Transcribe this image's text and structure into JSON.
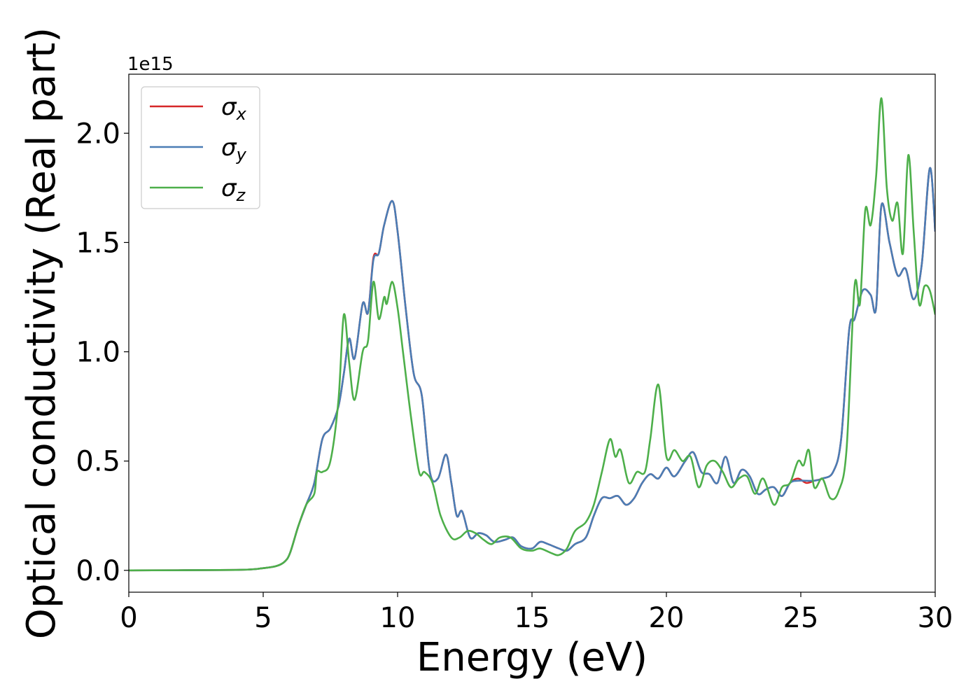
{
  "chart_data": {
    "type": "line",
    "xlabel": "Energy (eV)",
    "ylabel": "Optical conductivity (Real part)",
    "offset_text": "1e15",
    "xlim": [
      0,
      30
    ],
    "ylim": [
      -0.1,
      2.27
    ],
    "x_ticks": [
      0,
      5,
      10,
      15,
      20,
      25,
      30
    ],
    "x_tick_labels": [
      "0",
      "5",
      "10",
      "15",
      "20",
      "25",
      "30"
    ],
    "y_ticks": [
      0.0,
      0.5,
      1.0,
      1.5,
      2.0
    ],
    "y_tick_labels": [
      "0.0",
      "0.5",
      "1.0",
      "1.5",
      "2.0"
    ],
    "grid": false,
    "legend_position": "top-left",
    "series": [
      {
        "name": "σx",
        "symbol": "σ",
        "subscript": "x",
        "color": "#d62728",
        "x": [
          0,
          4,
          5,
          5.5,
          5.8,
          6.0,
          6.3,
          6.6,
          6.9,
          7.2,
          7.5,
          7.8,
          8.0,
          8.2,
          8.4,
          8.7,
          8.9,
          9.1,
          9.3,
          9.5,
          9.8,
          10.0,
          10.3,
          10.6,
          10.9,
          11.2,
          11.5,
          11.8,
          12.0,
          12.2,
          12.4,
          12.7,
          13.0,
          13.3,
          13.6,
          14.0,
          14.3,
          14.6,
          15.0,
          15.3,
          15.6,
          16.0,
          16.3,
          16.6,
          17.0,
          17.3,
          17.6,
          17.9,
          18.2,
          18.5,
          18.8,
          19.1,
          19.4,
          19.7,
          20.0,
          20.3,
          20.7,
          21.0,
          21.3,
          21.6,
          21.9,
          22.2,
          22.5,
          22.8,
          23.1,
          23.4,
          23.7,
          24.0,
          24.3,
          24.6,
          24.9,
          25.2,
          25.5,
          25.8,
          26.2,
          26.5,
          26.8,
          27.0,
          27.3,
          27.6,
          27.8,
          28.0,
          28.3,
          28.6,
          28.9,
          29.2,
          29.5,
          29.8,
          30.0
        ],
        "y": [
          0,
          0.002,
          0.01,
          0.02,
          0.04,
          0.08,
          0.2,
          0.3,
          0.4,
          0.6,
          0.65,
          0.75,
          0.9,
          1.06,
          0.97,
          1.22,
          1.18,
          1.43,
          1.45,
          1.58,
          1.69,
          1.55,
          1.2,
          0.9,
          0.8,
          0.45,
          0.42,
          0.53,
          0.4,
          0.25,
          0.27,
          0.15,
          0.17,
          0.16,
          0.13,
          0.14,
          0.15,
          0.11,
          0.1,
          0.13,
          0.12,
          0.1,
          0.09,
          0.12,
          0.15,
          0.25,
          0.33,
          0.33,
          0.34,
          0.3,
          0.33,
          0.4,
          0.44,
          0.42,
          0.47,
          0.43,
          0.5,
          0.54,
          0.45,
          0.44,
          0.4,
          0.52,
          0.4,
          0.46,
          0.43,
          0.35,
          0.37,
          0.38,
          0.34,
          0.4,
          0.42,
          0.4,
          0.41,
          0.42,
          0.45,
          0.6,
          1.1,
          1.15,
          1.28,
          1.26,
          1.2,
          1.67,
          1.5,
          1.35,
          1.38,
          1.24,
          1.4,
          1.84,
          1.55
        ]
      },
      {
        "name": "σy",
        "symbol": "σ",
        "subscript": "y",
        "color": "#4a7db5",
        "x": [
          0,
          4,
          5,
          5.5,
          5.8,
          6.0,
          6.3,
          6.6,
          6.9,
          7.2,
          7.5,
          7.8,
          8.0,
          8.2,
          8.4,
          8.7,
          8.9,
          9.1,
          9.3,
          9.5,
          9.8,
          10.0,
          10.3,
          10.6,
          10.9,
          11.2,
          11.5,
          11.8,
          12.0,
          12.2,
          12.4,
          12.7,
          13.0,
          13.3,
          13.6,
          14.0,
          14.3,
          14.6,
          15.0,
          15.3,
          15.6,
          16.0,
          16.3,
          16.6,
          17.0,
          17.3,
          17.6,
          17.9,
          18.2,
          18.5,
          18.8,
          19.1,
          19.4,
          19.7,
          20.0,
          20.3,
          20.7,
          21.0,
          21.3,
          21.6,
          21.9,
          22.2,
          22.5,
          22.8,
          23.1,
          23.4,
          23.7,
          24.0,
          24.3,
          24.6,
          24.9,
          25.2,
          25.5,
          25.8,
          26.2,
          26.5,
          26.8,
          27.0,
          27.3,
          27.6,
          27.8,
          28.0,
          28.3,
          28.6,
          28.9,
          29.2,
          29.5,
          29.8,
          30.0
        ],
        "y": [
          0,
          0.002,
          0.01,
          0.02,
          0.04,
          0.08,
          0.2,
          0.3,
          0.4,
          0.6,
          0.65,
          0.75,
          0.9,
          1.06,
          0.97,
          1.22,
          1.18,
          1.42,
          1.45,
          1.58,
          1.69,
          1.55,
          1.2,
          0.9,
          0.8,
          0.45,
          0.42,
          0.53,
          0.4,
          0.25,
          0.27,
          0.15,
          0.17,
          0.16,
          0.13,
          0.14,
          0.15,
          0.11,
          0.1,
          0.13,
          0.12,
          0.1,
          0.09,
          0.12,
          0.15,
          0.25,
          0.33,
          0.33,
          0.34,
          0.3,
          0.33,
          0.4,
          0.44,
          0.42,
          0.47,
          0.43,
          0.5,
          0.54,
          0.45,
          0.44,
          0.4,
          0.52,
          0.4,
          0.46,
          0.43,
          0.35,
          0.37,
          0.38,
          0.34,
          0.4,
          0.41,
          0.41,
          0.41,
          0.42,
          0.45,
          0.6,
          1.1,
          1.15,
          1.28,
          1.26,
          1.2,
          1.67,
          1.5,
          1.35,
          1.38,
          1.24,
          1.4,
          1.84,
          1.55
        ]
      },
      {
        "name": "σz",
        "symbol": "σ",
        "subscript": "z",
        "color": "#4daf4a",
        "x": [
          0,
          4,
          5,
          5.5,
          5.8,
          6.0,
          6.3,
          6.6,
          6.9,
          7.0,
          7.2,
          7.5,
          7.8,
          8.0,
          8.2,
          8.4,
          8.7,
          8.9,
          9.1,
          9.3,
          9.5,
          9.6,
          9.8,
          10.0,
          10.2,
          10.5,
          10.8,
          11.0,
          11.3,
          11.6,
          12.0,
          12.3,
          12.6,
          12.9,
          13.2,
          13.5,
          13.8,
          14.2,
          14.6,
          15.0,
          15.3,
          15.7,
          16.0,
          16.3,
          16.6,
          17.0,
          17.3,
          17.6,
          17.9,
          18.1,
          18.3,
          18.6,
          18.9,
          19.2,
          19.4,
          19.7,
          20.0,
          20.3,
          20.6,
          20.9,
          21.2,
          21.5,
          21.8,
          22.1,
          22.4,
          22.7,
          23.0,
          23.3,
          23.6,
          24.0,
          24.3,
          24.6,
          24.9,
          25.1,
          25.3,
          25.5,
          25.8,
          26.1,
          26.4,
          26.7,
          27.0,
          27.2,
          27.4,
          27.6,
          27.8,
          28.0,
          28.2,
          28.4,
          28.6,
          28.8,
          29.0,
          29.2,
          29.4,
          29.6,
          29.8,
          30.0
        ],
        "y": [
          0,
          0.002,
          0.01,
          0.02,
          0.04,
          0.08,
          0.2,
          0.3,
          0.35,
          0.45,
          0.45,
          0.5,
          0.78,
          1.17,
          0.95,
          0.78,
          1.0,
          1.05,
          1.32,
          1.15,
          1.25,
          1.22,
          1.32,
          1.2,
          1.0,
          0.7,
          0.45,
          0.45,
          0.4,
          0.25,
          0.15,
          0.15,
          0.18,
          0.17,
          0.14,
          0.12,
          0.15,
          0.15,
          0.1,
          0.09,
          0.1,
          0.08,
          0.07,
          0.1,
          0.18,
          0.22,
          0.3,
          0.45,
          0.6,
          0.52,
          0.55,
          0.4,
          0.45,
          0.45,
          0.6,
          0.85,
          0.52,
          0.55,
          0.5,
          0.52,
          0.38,
          0.48,
          0.5,
          0.45,
          0.38,
          0.42,
          0.43,
          0.35,
          0.42,
          0.3,
          0.38,
          0.4,
          0.5,
          0.48,
          0.55,
          0.38,
          0.42,
          0.33,
          0.36,
          0.55,
          1.3,
          1.22,
          1.65,
          1.58,
          1.8,
          2.16,
          1.75,
          1.6,
          1.68,
          1.45,
          1.9,
          1.55,
          1.22,
          1.3,
          1.28,
          1.17
        ]
      }
    ]
  }
}
